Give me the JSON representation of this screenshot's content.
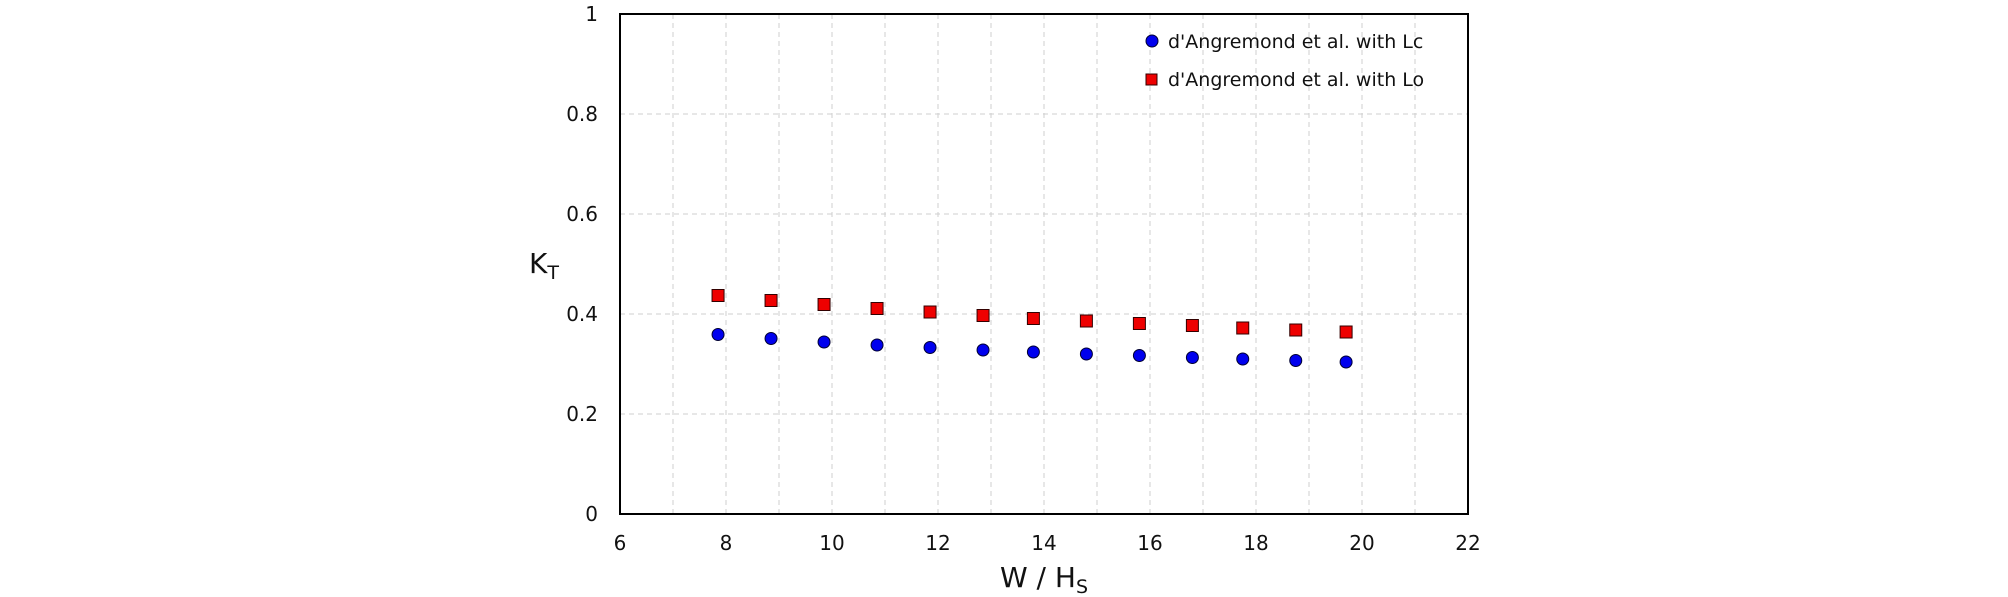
{
  "chart_data": {
    "type": "scatter",
    "title": "",
    "xlabel": {
      "main": "W / H",
      "sub": "S"
    },
    "ylabel": {
      "main": "K",
      "sub": "T"
    },
    "xlim": [
      6,
      22
    ],
    "ylim": [
      0,
      1
    ],
    "xticks": [
      6,
      8,
      10,
      12,
      14,
      16,
      18,
      20,
      22
    ],
    "yticks": [
      0,
      0.2,
      0.4,
      0.6,
      0.8,
      1
    ],
    "xtick_labels": [
      "6",
      "8",
      "10",
      "12",
      "14",
      "16",
      "18",
      "20",
      "22"
    ],
    "ytick_labels": [
      "0",
      "0.2",
      "0.4",
      "0.6",
      "0.8",
      "1"
    ],
    "grid": true,
    "legend_position": "top-right",
    "series": [
      {
        "name": "d'Angremond et al. with Lc",
        "marker": "circle",
        "color": "#0000ee",
        "x": [
          7.85,
          8.85,
          9.85,
          10.85,
          11.85,
          12.85,
          13.8,
          14.8,
          15.8,
          16.8,
          17.75,
          18.75,
          19.7
        ],
        "y": [
          0.359,
          0.351,
          0.344,
          0.338,
          0.333,
          0.328,
          0.324,
          0.32,
          0.317,
          0.313,
          0.31,
          0.307,
          0.304
        ]
      },
      {
        "name": "d'Angremond et al. with Lo",
        "marker": "square",
        "color": "#ee0000",
        "x": [
          7.85,
          8.85,
          9.85,
          10.85,
          11.85,
          12.85,
          13.8,
          14.8,
          15.8,
          16.8,
          17.75,
          18.75,
          19.7
        ],
        "y": [
          0.437,
          0.427,
          0.419,
          0.411,
          0.404,
          0.397,
          0.391,
          0.386,
          0.381,
          0.377,
          0.372,
          0.368,
          0.364
        ]
      }
    ]
  }
}
